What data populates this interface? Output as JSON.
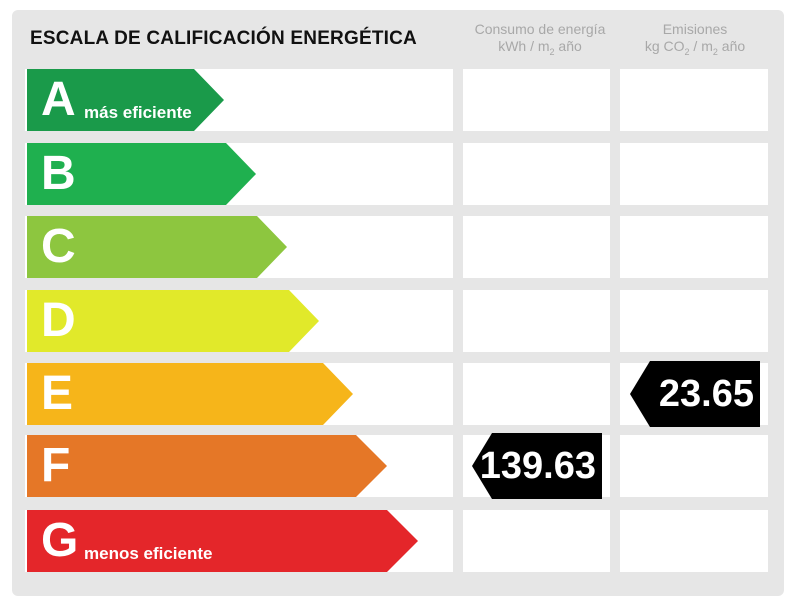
{
  "title": "ESCALA DE CALIFICACIÓN ENERGÉTICA",
  "columns": {
    "consumo": {
      "line1": "Consumo de energía",
      "line2_a": "kWh / m",
      "line2_sub": "2",
      "line2_b": " año"
    },
    "emisiones": {
      "line1": "Emisiones",
      "line2_a": "kg CO",
      "line2_sub1": "2",
      "line2_mid": " / m",
      "line2_sub2": "2",
      "line2_b": " año"
    }
  },
  "ratings": [
    {
      "letter": "A",
      "label": "más eficiente",
      "color": "#1a9a4a"
    },
    {
      "letter": "B",
      "label": "",
      "color": "#1fb04f"
    },
    {
      "letter": "C",
      "label": "",
      "color": "#8dc63f"
    },
    {
      "letter": "D",
      "label": "",
      "color": "#e1e92a"
    },
    {
      "letter": "E",
      "label": "",
      "color": "#f6b51a"
    },
    {
      "letter": "F",
      "label": "",
      "color": "#e57727"
    },
    {
      "letter": "G",
      "label": "menos eficiente",
      "color": "#e4262a"
    }
  ],
  "consumo_value": "139.63",
  "consumo_rating": "F",
  "emisiones_value": "23.65",
  "emisiones_rating": "E"
}
